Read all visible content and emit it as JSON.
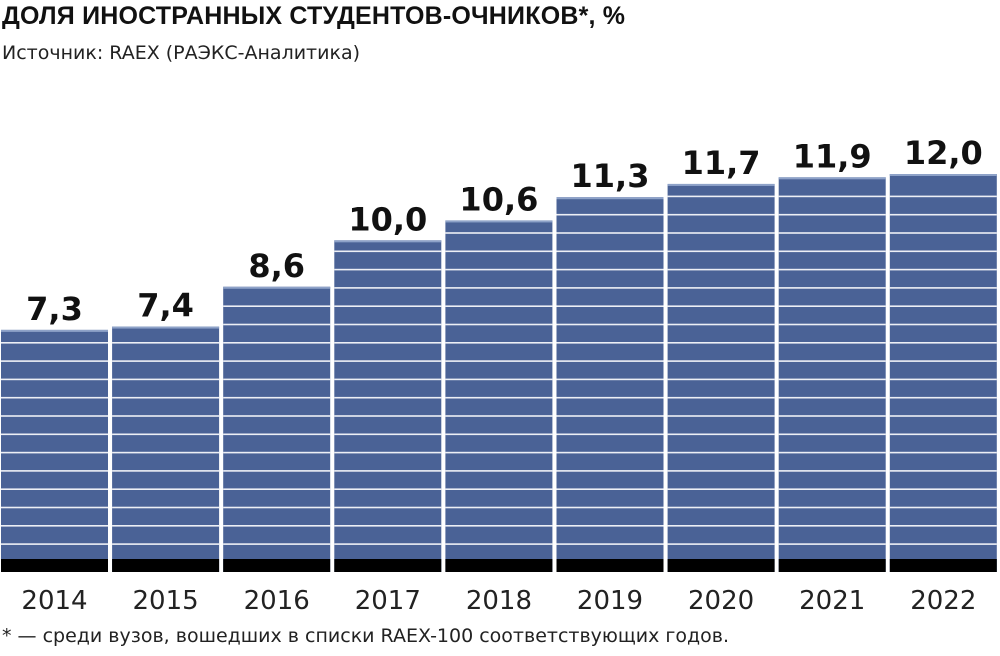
{
  "chart_data": {
    "type": "bar",
    "title": "ДОЛЯ ИНОСТРАННЫХ СТУДЕНТОВ-ОЧНИКОВ*, %",
    "subtitle": "Источник: RAEX (РАЭКС-Аналитика)",
    "footnote": "* — среди вузов, вошедших в списки RAEX-100 соответствующих годов.",
    "categories": [
      "2014",
      "2015",
      "2016",
      "2017",
      "2018",
      "2019",
      "2020",
      "2021",
      "2022"
    ],
    "values": [
      7.3,
      7.4,
      8.6,
      10.0,
      10.6,
      11.3,
      11.7,
      11.9,
      12.0
    ],
    "value_labels": [
      "7,3",
      "7,4",
      "8,6",
      "10,0",
      "10,6",
      "11,3",
      "11,7",
      "11,9",
      "12,0"
    ],
    "xlabel": "",
    "ylabel": "",
    "ylim": [
      0,
      12.0
    ],
    "grid": false,
    "legend": "none",
    "colors": {
      "bar": "#4a6296",
      "bar_base": "#000000",
      "stripe": "#ffffff",
      "text": "#111111"
    }
  }
}
